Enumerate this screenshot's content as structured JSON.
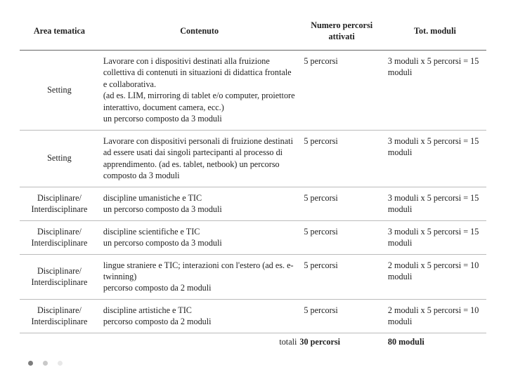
{
  "headers": {
    "area": "Area tematica",
    "contenuto": "Contenuto",
    "numero": "Numero percorsi attivati",
    "tot": "Tot. moduli"
  },
  "rows": [
    {
      "area": "Setting",
      "contenuto": "Lavorare con i dispositivi destinati alla fruizione collettiva di contenuti in situazioni di didattica frontale e collaborativa.\n(ad es. LIM, mirroring di tablet e/o computer, proiettore interattivo, document camera, ecc.)\nun percorso composto da 3 moduli",
      "numero": "5 percorsi",
      "tot": "3 moduli x 5 percorsi = 15 moduli"
    },
    {
      "area": "Setting",
      "contenuto": "Lavorare con dispositivi personali di fruizione destinati ad essere usati dai singoli partecipanti al processo di apprendimento. (ad es. tablet, netbook)                                     un percorso composto da 3 moduli",
      "numero": "5 percorsi",
      "tot": "3 moduli x 5 percorsi = 15 moduli"
    },
    {
      "area": "Disciplinare/ Interdisciplinare",
      "contenuto": "discipline umanistiche e TIC\nun percorso composto da 3 moduli",
      "numero": "5 percorsi",
      "tot": "3 moduli x 5 percorsi = 15 moduli"
    },
    {
      "area": "Disciplinare/ Interdisciplinare",
      "contenuto": "discipline scientifiche e TIC\nun percorso composto da 3 moduli",
      "numero": "5 percorsi",
      "tot": "3 moduli x 5 percorsi = 15 moduli"
    },
    {
      "area": "Disciplinare/ Interdisciplinare",
      "contenuto": "lingue straniere e TIC; interazioni con l'estero (ad es. e-twinning)\npercorso composto da 2 moduli",
      "numero": "5 percorsi",
      "tot": "2 moduli x 5 percorsi = 10 moduli"
    },
    {
      "area": "Disciplinare/ Interdisciplinare",
      "contenuto": "discipline artistiche e TIC\npercorso composto da 2 moduli",
      "numero": "5 percorsi",
      "tot": "2 moduli x 5 percorsi = 10 moduli"
    }
  ],
  "totals": {
    "label": "totali",
    "percorsi": "30 percorsi",
    "moduli": "80 moduli"
  },
  "dot_colors": [
    "#7d7d7d",
    "#c9c9c9",
    "#e8e8e8"
  ]
}
